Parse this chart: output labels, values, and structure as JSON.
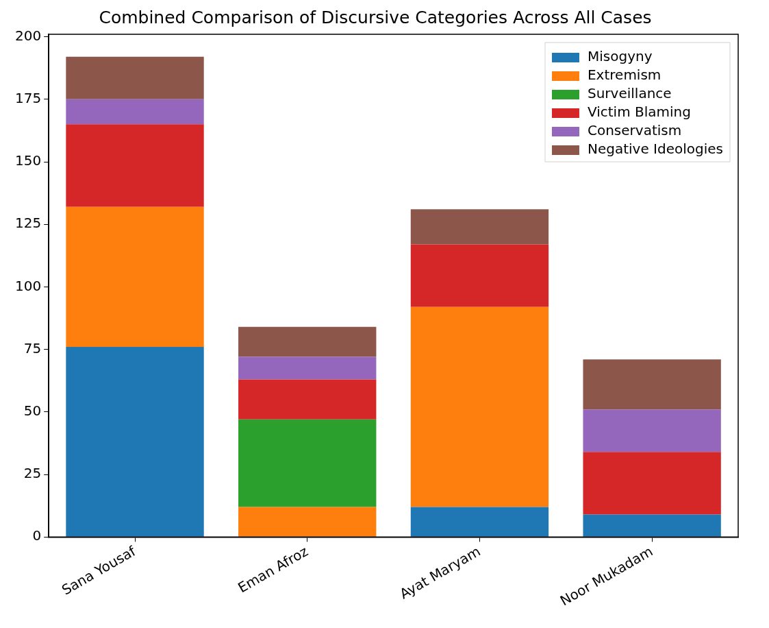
{
  "chart_data": {
    "type": "bar",
    "title": "Combined Comparison of Discursive Categories Across All Cases",
    "categories": [
      "Sana Yousaf",
      "Eman Afroz",
      "Ayat Maryam",
      "Noor Mukadam"
    ],
    "stacked": true,
    "series": [
      {
        "name": "Misogyny",
        "color": "#1f77b4",
        "values": [
          76,
          0,
          12,
          9
        ]
      },
      {
        "name": "Extremism",
        "color": "#ff7f0e",
        "values": [
          56,
          12,
          80,
          0
        ]
      },
      {
        "name": "Surveillance",
        "color": "#2ca02c",
        "values": [
          0,
          35,
          0,
          0
        ]
      },
      {
        "name": "Victim Blaming",
        "color": "#d62728",
        "values": [
          33,
          16,
          25,
          25
        ]
      },
      {
        "name": "Conservatism",
        "color": "#9467bd",
        "values": [
          10,
          9,
          0,
          17
        ]
      },
      {
        "name": "Negative Ideologies",
        "color": "#8c564b",
        "values": [
          17,
          12,
          14,
          20
        ]
      }
    ],
    "ylim": [
      0,
      201
    ],
    "yticks": [
      0,
      25,
      50,
      75,
      100,
      125,
      150,
      175,
      200
    ],
    "grid": false,
    "legend": "top right"
  }
}
